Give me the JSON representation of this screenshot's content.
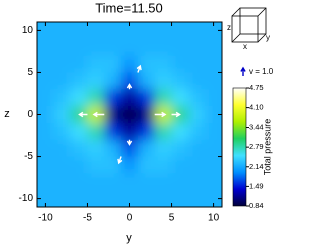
{
  "chart_data": {
    "type": "heatmap",
    "title": "Time=11.50",
    "xlabel": "y",
    "ylabel": "z",
    "x": [
      -10,
      -8,
      -6,
      -4,
      -2,
      0,
      2,
      4,
      6,
      8,
      10
    ],
    "y": [
      10,
      8,
      6,
      4,
      2,
      0,
      -2,
      -4,
      -6,
      -8,
      -10
    ],
    "values": [
      [
        2.2,
        2.2,
        2.2,
        2.2,
        2.2,
        2.2,
        2.2,
        2.2,
        2.2,
        2.2,
        2.2
      ],
      [
        2.2,
        2.2,
        2.2,
        2.2,
        2.2,
        2.2,
        2.2,
        2.2,
        2.2,
        2.2,
        2.2
      ],
      [
        2.2,
        2.2,
        2.2,
        2.3,
        2.3,
        2.0,
        2.3,
        2.3,
        2.2,
        2.2,
        2.2
      ],
      [
        2.2,
        2.2,
        2.3,
        2.4,
        2.2,
        1.7,
        2.2,
        2.4,
        2.3,
        2.2,
        2.2
      ],
      [
        2.2,
        2.3,
        2.5,
        2.8,
        1.6,
        1.2,
        1.6,
        2.8,
        2.5,
        2.3,
        2.2
      ],
      [
        2.2,
        2.4,
        2.9,
        3.8,
        1.1,
        0.9,
        1.1,
        3.8,
        2.9,
        2.4,
        2.2
      ],
      [
        2.2,
        2.3,
        2.5,
        2.8,
        1.6,
        1.2,
        1.6,
        2.8,
        2.5,
        2.3,
        2.2
      ],
      [
        2.2,
        2.2,
        2.3,
        2.4,
        2.2,
        1.7,
        2.2,
        2.4,
        2.3,
        2.2,
        2.2
      ],
      [
        2.2,
        2.2,
        2.2,
        2.3,
        2.3,
        2.0,
        2.3,
        2.3,
        2.2,
        2.2,
        2.2
      ],
      [
        2.2,
        2.2,
        2.2,
        2.2,
        2.2,
        2.2,
        2.2,
        2.2,
        2.2,
        2.2,
        2.2
      ],
      [
        2.2,
        2.2,
        2.2,
        2.2,
        2.2,
        2.2,
        2.2,
        2.2,
        2.2,
        2.2,
        2.2
      ]
    ],
    "xlim": [
      -11,
      11
    ],
    "ylim": [
      -11,
      11
    ],
    "xticks": [
      -10,
      -5,
      0,
      5,
      10
    ],
    "yticks": [
      -10,
      -5,
      0,
      5,
      10
    ],
    "colormap": [
      "#00003a",
      "#0000d0",
      "#0090ff",
      "#40e0ff",
      "#20d060",
      "#b0f000",
      "#ffff30",
      "#ffffff"
    ],
    "clim": [
      0.84,
      4.75
    ],
    "cticks": [
      0.84,
      1.49,
      2.14,
      2.79,
      3.44,
      {
        "value": 4.1,
        "label": "4.10"
      },
      4.75
    ],
    "colorbar_label": "Total pressure",
    "vectors": [
      {
        "y": -3,
        "z": 0,
        "vy": -1.3,
        "vz": 0
      },
      {
        "y": 3,
        "z": 0,
        "vy": 1.3,
        "vz": 0
      },
      {
        "y": -5,
        "z": 0,
        "vy": -1.0,
        "vz": 0
      },
      {
        "y": 5,
        "z": 0,
        "vy": 1.0,
        "vz": 0
      },
      {
        "y": 0,
        "z": -3,
        "vy": 0,
        "vz": -0.6
      },
      {
        "y": 0,
        "z": 3,
        "vy": 0,
        "vz": 0.6
      },
      {
        "y": -1,
        "z": -5,
        "vy": -0.3,
        "vz": -0.8
      },
      {
        "y": 1,
        "z": 5,
        "vy": 0.3,
        "vz": 0.8
      }
    ],
    "vector_color": "#ffffff",
    "vector_key": {
      "value": 1.0,
      "label": "v = 1.0"
    },
    "cube_labels": {
      "x": "x",
      "y": "y",
      "z": "z"
    }
  }
}
